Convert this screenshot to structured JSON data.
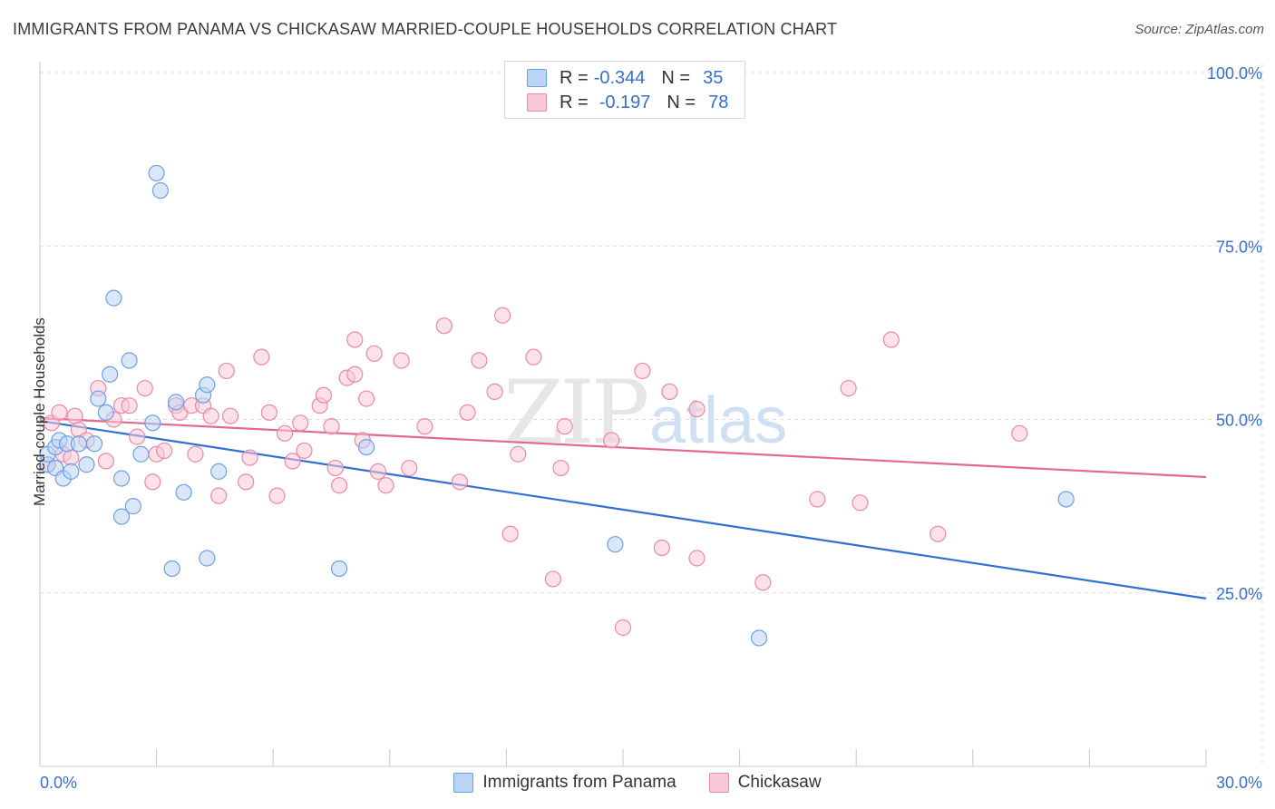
{
  "header": {
    "title": "IMMIGRANTS FROM PANAMA VS CHICKASAW MARRIED-COUPLE HOUSEHOLDS CORRELATION CHART",
    "source": "Source: ZipAtlas.com"
  },
  "watermark": {
    "zip": "ZIP",
    "atlas": "atlas"
  },
  "legend_top": [
    {
      "r_label": "R =",
      "r_value": "-0.344",
      "n_label": "N =",
      "n_value": "35",
      "color": "#a9c8f0"
    },
    {
      "r_label": "R =",
      "r_value": "-0.197",
      "n_label": "N =",
      "n_value": "78",
      "color": "#f6b8cb"
    }
  ],
  "legend_bottom": [
    {
      "label": "Immigrants from Panama",
      "color": "#a9c8f0"
    },
    {
      "label": "Chickasaw",
      "color": "#f6b8cb"
    }
  ],
  "chart_data": {
    "type": "scatter",
    "ylabel": "Married-couple Households",
    "xlim": [
      0,
      30
    ],
    "ylim": [
      0,
      100
    ],
    "x_tick_labels": {
      "min": "0.0%",
      "max": "30.0%"
    },
    "y_ticks": [
      25,
      50,
      75,
      100
    ],
    "y_tick_labels": [
      "25.0%",
      "50.0%",
      "75.0%",
      "100.0%"
    ],
    "grid": true,
    "series": [
      {
        "name": "Immigrants from Panama",
        "color": "#6fa0e0",
        "fill": "#bcd4f4",
        "points": [
          [
            0.2,
            43.5
          ],
          [
            0.2,
            45
          ],
          [
            0.4,
            43
          ],
          [
            0.4,
            46
          ],
          [
            0.5,
            47
          ],
          [
            0.6,
            41.5
          ],
          [
            0.7,
            46.5
          ],
          [
            0.8,
            42.5
          ],
          [
            1.0,
            46.5
          ],
          [
            1.2,
            43.5
          ],
          [
            1.4,
            46.5
          ],
          [
            1.5,
            53
          ],
          [
            1.7,
            51
          ],
          [
            1.8,
            56.5
          ],
          [
            1.9,
            67.5
          ],
          [
            2.1,
            41.5
          ],
          [
            2.1,
            36
          ],
          [
            2.3,
            58.5
          ],
          [
            2.4,
            37.5
          ],
          [
            2.6,
            45
          ],
          [
            2.9,
            49.5
          ],
          [
            3.0,
            85.5
          ],
          [
            3.1,
            83
          ],
          [
            3.4,
            28.5
          ],
          [
            3.5,
            52.5
          ],
          [
            3.7,
            39.5
          ],
          [
            4.2,
            53.5
          ],
          [
            4.3,
            55
          ],
          [
            4.3,
            30
          ],
          [
            4.6,
            42.5
          ],
          [
            7.7,
            28.5
          ],
          [
            8.4,
            46
          ],
          [
            14.8,
            32
          ],
          [
            18.5,
            18.5
          ],
          [
            26.4,
            38.5
          ]
        ],
        "trend": [
          [
            0,
            49.8
          ],
          [
            30,
            24.2
          ]
        ]
      },
      {
        "name": "Chickasaw",
        "color": "#e88aa8",
        "fill": "#f9c8d6",
        "points": [
          [
            0.2,
            43.5
          ],
          [
            0.3,
            49.5
          ],
          [
            0.5,
            51
          ],
          [
            0.6,
            45
          ],
          [
            0.8,
            44.5
          ],
          [
            0.9,
            50.5
          ],
          [
            1.0,
            48.5
          ],
          [
            1.2,
            47
          ],
          [
            1.5,
            54.5
          ],
          [
            1.7,
            44
          ],
          [
            1.9,
            50
          ],
          [
            2.1,
            52
          ],
          [
            2.3,
            52
          ],
          [
            2.5,
            47.5
          ],
          [
            2.7,
            54.5
          ],
          [
            2.9,
            41
          ],
          [
            3.0,
            45
          ],
          [
            3.2,
            45.5
          ],
          [
            3.5,
            52
          ],
          [
            3.6,
            51
          ],
          [
            3.9,
            52
          ],
          [
            4.0,
            45
          ],
          [
            4.2,
            52
          ],
          [
            4.4,
            50.5
          ],
          [
            4.6,
            39
          ],
          [
            4.8,
            57
          ],
          [
            4.9,
            50.5
          ],
          [
            5.3,
            41
          ],
          [
            5.4,
            44.5
          ],
          [
            5.7,
            59
          ],
          [
            5.9,
            51
          ],
          [
            6.1,
            39
          ],
          [
            6.3,
            48
          ],
          [
            6.5,
            44
          ],
          [
            6.7,
            49.5
          ],
          [
            6.8,
            45.5
          ],
          [
            7.2,
            52
          ],
          [
            7.3,
            53.5
          ],
          [
            7.5,
            49
          ],
          [
            7.6,
            43
          ],
          [
            7.7,
            40.5
          ],
          [
            7.9,
            56
          ],
          [
            8.1,
            61.5
          ],
          [
            8.1,
            56.5
          ],
          [
            8.3,
            47
          ],
          [
            8.4,
            53
          ],
          [
            8.6,
            59.5
          ],
          [
            8.7,
            42.5
          ],
          [
            8.9,
            40.5
          ],
          [
            9.3,
            58.5
          ],
          [
            9.5,
            43
          ],
          [
            9.9,
            49
          ],
          [
            10.4,
            63.5
          ],
          [
            10.8,
            41
          ],
          [
            11.0,
            51
          ],
          [
            11.3,
            58.5
          ],
          [
            11.7,
            54
          ],
          [
            11.9,
            65
          ],
          [
            12.1,
            33.5
          ],
          [
            12.3,
            45
          ],
          [
            12.7,
            59
          ],
          [
            13.2,
            27
          ],
          [
            13.4,
            43
          ],
          [
            13.5,
            49
          ],
          [
            14.7,
            47
          ],
          [
            15.0,
            20
          ],
          [
            15.5,
            57
          ],
          [
            16.0,
            31.5
          ],
          [
            16.2,
            54
          ],
          [
            16.9,
            51.5
          ],
          [
            16.9,
            30
          ],
          [
            18.6,
            26.5
          ],
          [
            20.0,
            38.5
          ],
          [
            20.8,
            54.5
          ],
          [
            21.1,
            38
          ],
          [
            21.9,
            61.5
          ],
          [
            23.1,
            33.5
          ],
          [
            25.2,
            48
          ]
        ],
        "trend": [
          [
            0,
            50.2
          ],
          [
            30,
            41.7
          ]
        ]
      }
    ]
  }
}
